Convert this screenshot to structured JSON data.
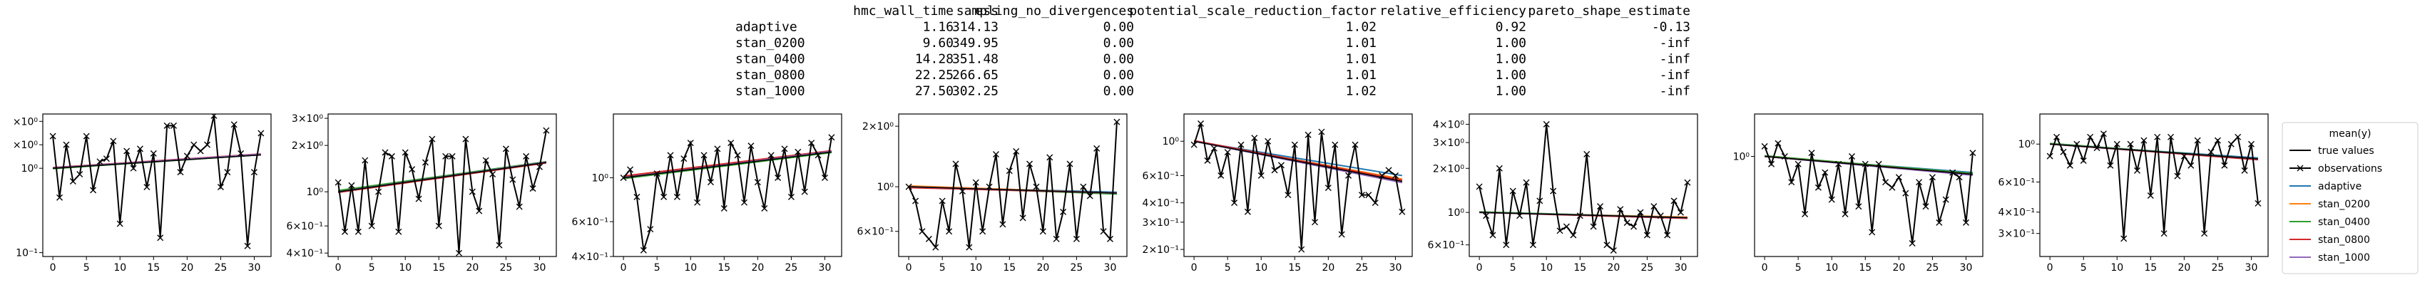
{
  "summary_table": {
    "columns": [
      "hmc_wall_time",
      "ess",
      "sampling_no_divergences",
      "potential_scale_reduction_factor",
      "relative_efficiency",
      "pareto_shape_estimate"
    ],
    "rows": [
      {
        "name": "adaptive",
        "values": [
          "1.16",
          "314.13",
          "0.00",
          "1.02",
          "0.92",
          "-0.13"
        ]
      },
      {
        "name": "stan_0200",
        "values": [
          "9.60",
          "349.95",
          "0.00",
          "1.01",
          "1.00",
          "-inf"
        ]
      },
      {
        "name": "stan_0400",
        "values": [
          "14.28",
          "351.48",
          "0.00",
          "1.01",
          "1.00",
          "-inf"
        ]
      },
      {
        "name": "stan_0800",
        "values": [
          "22.25",
          "266.65",
          "0.00",
          "1.01",
          "1.00",
          "-inf"
        ]
      },
      {
        "name": "stan_1000",
        "values": [
          "27.50",
          "302.25",
          "0.00",
          "1.02",
          "1.00",
          "-inf"
        ]
      }
    ]
  },
  "legend": {
    "title": "mean(y)",
    "entries": [
      {
        "label": "true values",
        "color": "#000000",
        "kind": "line"
      },
      {
        "label": "observations",
        "color": "#000000",
        "kind": "line-x"
      },
      {
        "label": "adaptive",
        "color": "#1f77b4",
        "kind": "line"
      },
      {
        "label": "stan_0200",
        "color": "#ff7f0e",
        "kind": "line"
      },
      {
        "label": "stan_0400",
        "color": "#2ca02c",
        "kind": "line"
      },
      {
        "label": "stan_0800",
        "color": "#d62728",
        "kind": "line"
      },
      {
        "label": "stan_1000",
        "color": "#9467bd",
        "kind": "line"
      }
    ]
  },
  "chart_data": [
    {
      "type": "line",
      "yscale": "log",
      "xlim": [
        -1.5,
        32.5
      ],
      "ylim": [
        0.09,
        4.4
      ],
      "xticks": [
        0,
        5,
        10,
        15,
        20,
        25,
        30
      ],
      "yticks": [
        {
          "v": 0.1,
          "label": "10⁻¹"
        },
        {
          "v": 1,
          "label": "10⁰"
        },
        {
          "v": 1.9,
          "label": "×10⁰"
        },
        {
          "v": 3.6,
          "label": "×10⁰"
        }
      ],
      "observations": [
        2.4,
        0.45,
        1.9,
        0.7,
        0.85,
        2.4,
        0.55,
        1.2,
        1.3,
        2.1,
        0.22,
        1.6,
        1.0,
        1.7,
        0.6,
        1.5,
        0.15,
        3.2,
        3.2,
        0.9,
        1.4,
        1.9,
        1.6,
        1.9,
        4.2,
        0.6,
        0.9,
        3.3,
        1.5,
        0.12,
        0.9,
        2.6
      ],
      "true_values": [
        1.0,
        1.44
      ],
      "fits": [
        [
          1.0,
          1.45
        ],
        [
          1.01,
          1.46
        ],
        [
          0.99,
          1.45
        ],
        [
          1.02,
          1.48
        ],
        [
          1.01,
          1.47
        ]
      ]
    },
    {
      "type": "line",
      "yscale": "log",
      "xlim": [
        -1.5,
        32.5
      ],
      "ylim": [
        0.38,
        3.2
      ],
      "xticks": [
        0,
        5,
        10,
        15,
        20,
        25,
        30
      ],
      "yticks": [
        {
          "v": 0.4,
          "label": "4×10⁻¹"
        },
        {
          "v": 0.6,
          "label": "6×10⁻¹"
        },
        {
          "v": 1,
          "label": "10⁰"
        },
        {
          "v": 2,
          "label": "2×10⁰"
        },
        {
          "v": 3,
          "label": "3×10⁰"
        }
      ],
      "observations": [
        1.15,
        0.55,
        1.1,
        0.55,
        1.6,
        0.6,
        1.0,
        1.8,
        1.7,
        0.55,
        1.8,
        1.4,
        0.9,
        1.55,
        2.2,
        0.6,
        1.7,
        1.7,
        0.4,
        2.2,
        1.0,
        0.75,
        1.6,
        1.3,
        0.45,
        1.9,
        1.2,
        0.8,
        1.7,
        1.05,
        1.45,
        2.5
      ],
      "true_values": [
        1.0,
        1.55
      ],
      "fits": [
        [
          1.01,
          1.56
        ],
        [
          1.0,
          1.55
        ],
        [
          1.02,
          1.57
        ],
        [
          0.99,
          1.54
        ],
        [
          1.0,
          1.56
        ]
      ]
    },
    {
      "type": "line",
      "yscale": "log",
      "xlim": [
        -1.5,
        32.5
      ],
      "ylim": [
        0.4,
        2.1
      ],
      "xticks": [
        0,
        5,
        10,
        15,
        20,
        25,
        30
      ],
      "yticks": [
        {
          "v": 0.4,
          "label": "4×10⁻¹"
        },
        {
          "v": 0.6,
          "label": "6×10⁻¹"
        },
        {
          "v": 1,
          "label": "10⁰"
        }
      ],
      "observations": [
        1.0,
        1.1,
        0.8,
        0.43,
        0.55,
        1.05,
        0.8,
        1.3,
        0.8,
        1.25,
        1.5,
        0.75,
        1.3,
        0.95,
        1.4,
        0.7,
        1.5,
        1.3,
        0.75,
        1.45,
        0.95,
        0.7,
        1.3,
        1.0,
        1.4,
        0.8,
        1.35,
        0.85,
        1.5,
        1.3,
        1.0,
        1.6
      ],
      "true_values": [
        1.0,
        1.35
      ],
      "fits": [
        [
          1.01,
          1.36
        ],
        [
          1.0,
          1.35
        ],
        [
          0.99,
          1.34
        ],
        [
          1.02,
          1.37
        ],
        [
          1.0,
          1.36
        ]
      ]
    },
    {
      "type": "line",
      "yscale": "log",
      "xlim": [
        -1.5,
        32.5
      ],
      "ylim": [
        0.45,
        2.3
      ],
      "xticks": [
        0,
        5,
        10,
        15,
        20,
        25,
        30
      ],
      "yticks": [
        {
          "v": 0.6,
          "label": "6×10⁻¹"
        },
        {
          "v": 1,
          "label": "10⁰"
        },
        {
          "v": 2,
          "label": "2×10⁰"
        }
      ],
      "observations": [
        1.0,
        0.85,
        0.6,
        0.55,
        0.5,
        0.85,
        0.6,
        1.3,
        0.95,
        0.5,
        1.05,
        0.6,
        1.0,
        1.45,
        0.65,
        1.2,
        1.5,
        0.7,
        1.3,
        1.0,
        0.6,
        1.4,
        0.55,
        0.75,
        1.3,
        0.55,
        1.0,
        0.9,
        1.55,
        0.6,
        0.55,
        2.1
      ],
      "true_values": [
        1.0,
        0.93
      ],
      "fits": [
        [
          1.0,
          0.94
        ],
        [
          1.01,
          0.93
        ],
        [
          1.0,
          0.92
        ],
        [
          0.99,
          0.93
        ],
        [
          1.0,
          0.93
        ]
      ]
    },
    {
      "type": "line",
      "yscale": "log",
      "xlim": [
        -1.5,
        32.5
      ],
      "ylim": [
        0.18,
        1.5
      ],
      "xticks": [
        0,
        5,
        10,
        15,
        20,
        25,
        30
      ],
      "yticks": [
        {
          "v": 0.2,
          "label": "2×10⁻¹"
        },
        {
          "v": 0.3,
          "label": "3×10⁻¹"
        },
        {
          "v": 0.4,
          "label": "4×10⁻¹"
        },
        {
          "v": 0.6,
          "label": "6×10⁻¹"
        },
        {
          "v": 1,
          "label": "10⁰"
        }
      ],
      "observations": [
        0.95,
        1.3,
        0.75,
        0.9,
        0.6,
        0.85,
        0.4,
        0.95,
        0.35,
        1.05,
        0.6,
        1.0,
        0.65,
        0.7,
        0.45,
        0.95,
        0.2,
        1.1,
        0.3,
        1.15,
        0.5,
        0.95,
        0.25,
        0.6,
        0.95,
        0.45,
        0.45,
        0.4,
        0.6,
        0.65,
        0.6,
        0.35
      ],
      "true_values": [
        1.0,
        0.55
      ],
      "fits": [
        [
          1.0,
          0.6
        ],
        [
          1.0,
          0.57
        ],
        [
          1.0,
          0.55
        ],
        [
          1.01,
          0.56
        ],
        [
          1.0,
          0.54
        ]
      ]
    },
    {
      "type": "line",
      "yscale": "log",
      "xlim": [
        -1.5,
        32.5
      ],
      "ylim": [
        0.5,
        4.7
      ],
      "xticks": [
        0,
        5,
        10,
        15,
        20,
        25,
        30
      ],
      "yticks": [
        {
          "v": 0.6,
          "label": "6×10⁻¹"
        },
        {
          "v": 1,
          "label": "10⁰"
        },
        {
          "v": 2,
          "label": "2×10⁰"
        },
        {
          "v": 3,
          "label": "3×10⁰"
        },
        {
          "v": 4,
          "label": "4×10⁰"
        }
      ],
      "observations": [
        1.5,
        0.95,
        0.7,
        2.0,
        0.6,
        1.4,
        0.95,
        1.6,
        0.6,
        1.2,
        4.0,
        1.4,
        0.75,
        0.8,
        0.7,
        0.95,
        2.5,
        0.8,
        1.1,
        0.6,
        0.55,
        1.05,
        0.85,
        0.8,
        1.0,
        0.7,
        1.1,
        0.95,
        0.7,
        1.2,
        1.0,
        1.6
      ],
      "true_values": [
        1.0,
        0.92
      ],
      "fits": [
        [
          1.0,
          0.92
        ],
        [
          1.0,
          0.93
        ],
        [
          1.01,
          0.92
        ],
        [
          1.0,
          0.91
        ],
        [
          1.0,
          0.92
        ]
      ]
    },
    {
      "type": "line",
      "yscale": "log",
      "xlim": [
        -1.5,
        32.5
      ],
      "ylim": [
        0.25,
        1.8
      ],
      "xticks": [
        0,
        5,
        10,
        15,
        20,
        25,
        30
      ],
      "yticks": [
        {
          "v": 1,
          "label": "10⁰"
        }
      ],
      "observations": [
        1.15,
        0.9,
        1.2,
        1.0,
        0.7,
        0.9,
        0.45,
        1.05,
        0.65,
        0.8,
        0.55,
        0.9,
        0.45,
        1.0,
        0.5,
        0.9,
        0.35,
        0.9,
        0.7,
        0.65,
        0.75,
        0.6,
        0.3,
        0.7,
        0.5,
        0.75,
        0.4,
        0.55,
        0.8,
        0.75,
        0.4,
        1.05
      ],
      "true_values": [
        1.0,
        0.78
      ],
      "fits": [
        [
          1.0,
          0.8
        ],
        [
          1.0,
          0.78
        ],
        [
          1.01,
          0.79
        ],
        [
          1.0,
          0.78
        ],
        [
          1.0,
          0.77
        ]
      ]
    },
    {
      "type": "line",
      "yscale": "log",
      "xlim": [
        -1.5,
        32.5
      ],
      "ylim": [
        0.22,
        1.5
      ],
      "xticks": [
        0,
        5,
        10,
        15,
        20,
        25,
        30
      ],
      "yticks": [
        {
          "v": 0.3,
          "label": "3×10⁻¹"
        },
        {
          "v": 0.4,
          "label": "4×10⁻¹"
        },
        {
          "v": 0.6,
          "label": "6×10⁻¹"
        },
        {
          "v": 1,
          "label": "10⁰"
        }
      ],
      "observations": [
        0.85,
        1.1,
        0.9,
        0.75,
        1.0,
        0.8,
        1.1,
        0.95,
        1.15,
        0.75,
        1.0,
        0.28,
        1.0,
        0.7,
        1.05,
        0.5,
        1.1,
        0.3,
        1.1,
        0.65,
        0.85,
        0.75,
        1.05,
        0.3,
        0.9,
        1.05,
        0.75,
        1.0,
        1.1,
        0.7,
        1.0,
        0.45
      ],
      "true_values": [
        1.0,
        0.82
      ],
      "fits": [
        [
          1.0,
          0.83
        ],
        [
          1.0,
          0.82
        ],
        [
          1.01,
          0.82
        ],
        [
          1.0,
          0.81
        ],
        [
          1.0,
          0.82
        ]
      ]
    }
  ]
}
